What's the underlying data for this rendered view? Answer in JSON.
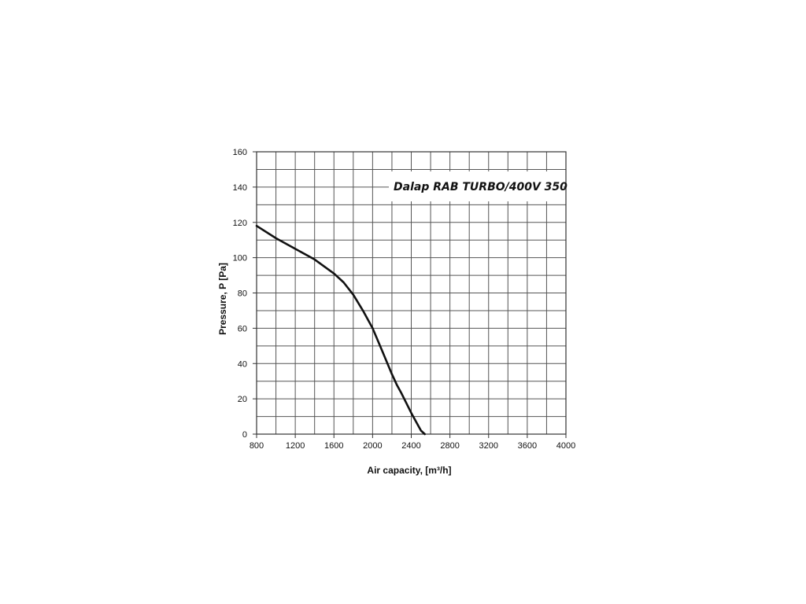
{
  "chart_data": {
    "type": "line",
    "title": "Dalap RAB TURBO/400V 350",
    "xlabel": "Air capacity, [m³/h]",
    "ylabel": "Pressure,   P [Pa]",
    "xlim": [
      800,
      4000
    ],
    "ylim": [
      0,
      160
    ],
    "x_ticks": [
      "800",
      "1200",
      "1600",
      "2000",
      "2400",
      "2800",
      "3200",
      "3600",
      "4000"
    ],
    "y_ticks": [
      "0",
      "20",
      "40",
      "60",
      "80",
      "100",
      "120",
      "140",
      "160"
    ],
    "grid": true,
    "series": [
      {
        "color": "#111111",
        "x": [
          800,
          1000,
          1200,
          1400,
          1600,
          1700,
          1800,
          1900,
          2000,
          2100,
          2200,
          2250,
          2300,
          2400,
          2500,
          2540
        ],
        "y": [
          118,
          111,
          105,
          99,
          91,
          86,
          79,
          70,
          60,
          47,
          34,
          28,
          23,
          12,
          2,
          0
        ]
      }
    ]
  }
}
